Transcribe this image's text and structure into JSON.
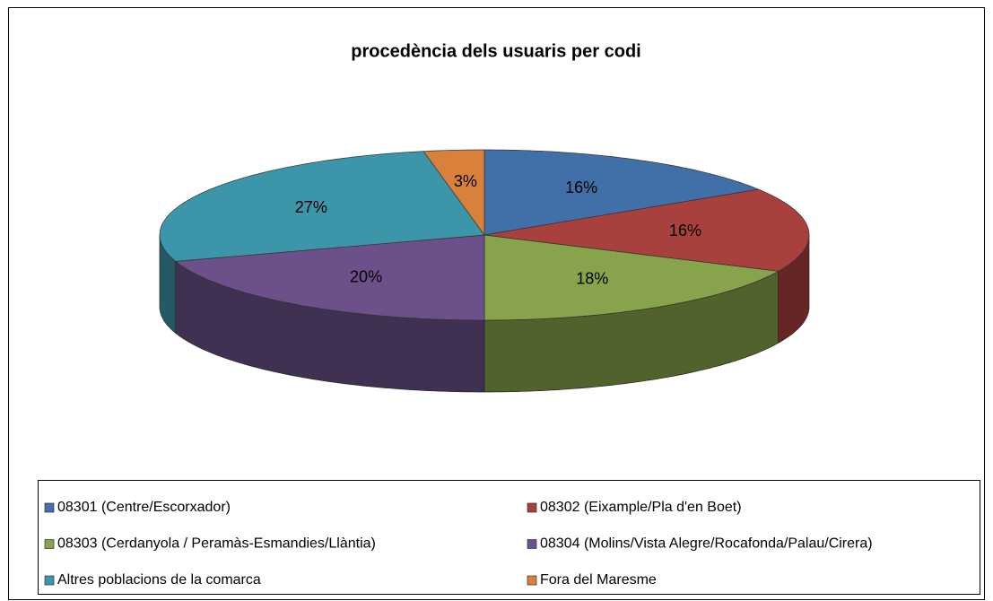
{
  "chart_data": {
    "type": "pie",
    "title": "procedència dels usuaris per codi",
    "categories": [
      "08301 (Centre/Escorxador)",
      "08302 (Eixample/Pla d'en Boet)",
      "08303 (Cerdanyola / Peramàs-Esmandies/Llàntia)",
      "08304 (Molins/Vista Alegre/Rocafonda/Palau/Cirera)",
      "Altres poblacions de la comarca",
      "Fora del Maresme"
    ],
    "values": [
      16,
      16,
      18,
      20,
      27,
      3
    ],
    "value_labels": [
      "16%",
      "16%",
      "18%",
      "20%",
      "27%",
      "3%"
    ],
    "colors": [
      "#4170a8",
      "#a8403e",
      "#87a34c",
      "#6b5089",
      "#3c95a9",
      "#d9803a"
    ],
    "legend": "bottom"
  }
}
